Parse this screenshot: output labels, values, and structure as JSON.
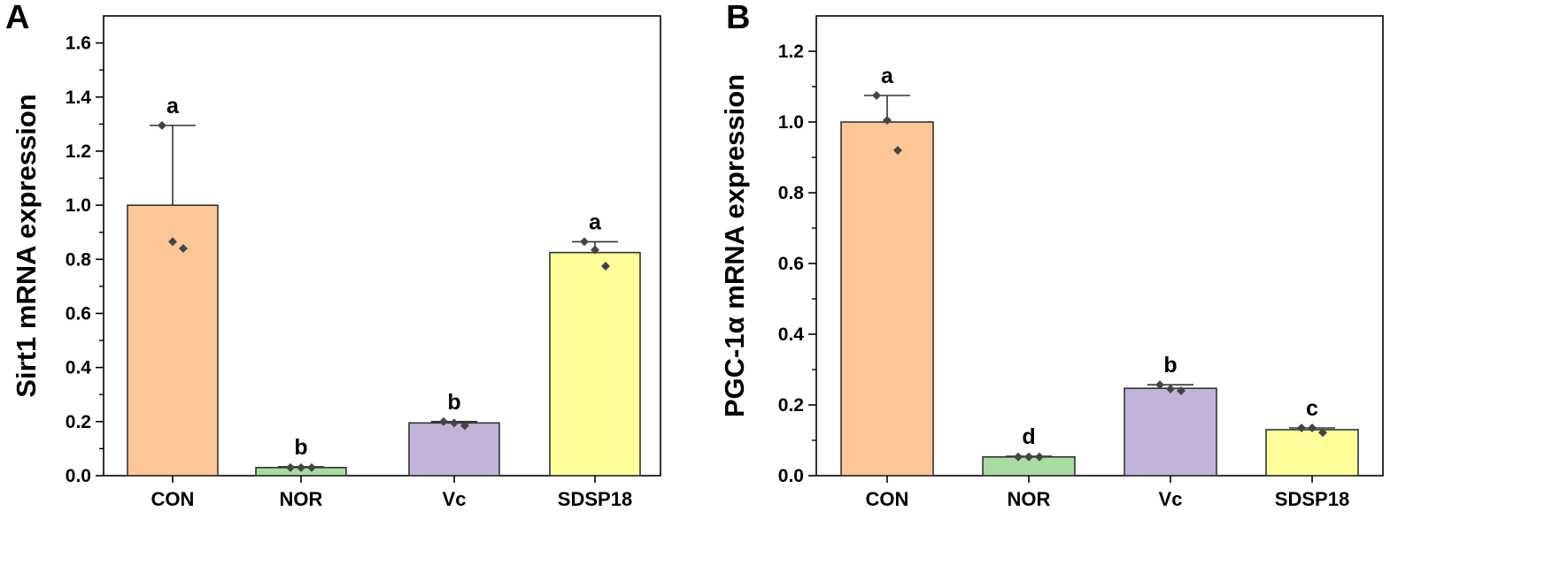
{
  "chart_data": [
    {
      "panel": "A",
      "type": "bar",
      "ylabel": "Sirt1 mRNA expression",
      "xlabel": "",
      "ylim": [
        0,
        1.7
      ],
      "yticks": [
        0.0,
        0.2,
        0.4,
        0.6,
        0.8,
        1.0,
        1.2,
        1.4,
        1.6
      ],
      "ytick_labels": [
        "0.0",
        "0.2",
        "0.4",
        "0.6",
        "0.8",
        "1.0",
        "1.2",
        "1.4",
        "1.6"
      ],
      "categories": [
        "CON",
        "NOR",
        "Vc",
        "SDSP18"
      ],
      "values": [
        1.0,
        0.03,
        0.195,
        0.825
      ],
      "errors": [
        0.295,
        0.003,
        0.005,
        0.04
      ],
      "points": [
        [
          1.295,
          0.865,
          0.84
        ],
        [
          0.03,
          0.03,
          0.03
        ],
        [
          0.2,
          0.195,
          0.185
        ],
        [
          0.865,
          0.835,
          0.775
        ]
      ],
      "significance": [
        "a",
        "b",
        "b",
        "a"
      ],
      "colors": [
        "#fcc697",
        "#a9dba2",
        "#c1b3d9",
        "#fdfd9a"
      ]
    },
    {
      "panel": "B",
      "type": "bar",
      "ylabel": "PGC-1α mRNA expression",
      "xlabel": "",
      "ylim": [
        0,
        1.3
      ],
      "yticks": [
        0.0,
        0.2,
        0.4,
        0.6,
        0.8,
        1.0,
        1.2
      ],
      "ytick_labels": [
        "0.0",
        "0.2",
        "0.4",
        "0.6",
        "0.8",
        "1.0",
        "1.2"
      ],
      "categories": [
        "CON",
        "NOR",
        "Vc",
        "SDSP18"
      ],
      "values": [
        1.0,
        0.053,
        0.247,
        0.13
      ],
      "errors": [
        0.075,
        0.002,
        0.01,
        0.005
      ],
      "points": [
        [
          1.075,
          1.005,
          0.92
        ],
        [
          0.053,
          0.053,
          0.053
        ],
        [
          0.257,
          0.245,
          0.24
        ],
        [
          0.135,
          0.135,
          0.122
        ]
      ],
      "significance": [
        "a",
        "d",
        "b",
        "c"
      ],
      "colors": [
        "#fcc697",
        "#a9dba2",
        "#c1b3d9",
        "#fdfd9a"
      ]
    }
  ]
}
